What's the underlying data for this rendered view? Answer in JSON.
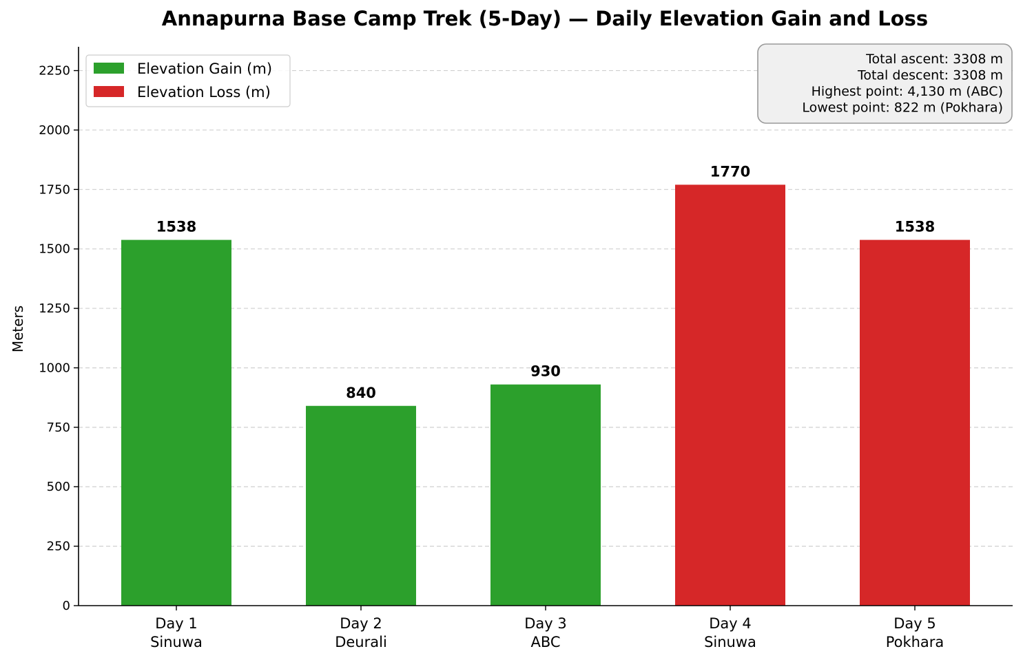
{
  "chart_data": {
    "type": "bar",
    "title": "Annapurna Base Camp Trek (5-Day) — Daily Elevation Gain and Loss",
    "ylabel": "Meters",
    "xlabel": "",
    "ylim": [
      0,
      2350
    ],
    "yticks": [
      0,
      250,
      500,
      750,
      1000,
      1250,
      1500,
      1750,
      2000,
      2250
    ],
    "grid": true,
    "legend_position": "top-left",
    "categories": [
      {
        "day": "Day 1",
        "place": "Sinuwa"
      },
      {
        "day": "Day 2",
        "place": "Deurali"
      },
      {
        "day": "Day 3",
        "place": "ABC"
      },
      {
        "day": "Day 4",
        "place": "Sinuwa"
      },
      {
        "day": "Day 5",
        "place": "Pokhara"
      }
    ],
    "series": [
      {
        "name": "Elevation Gain (m)",
        "color": "#2ca02c",
        "values": [
          1538,
          840,
          930,
          null,
          null
        ]
      },
      {
        "name": "Elevation Loss (m)",
        "color": "#d62728",
        "values": [
          null,
          null,
          null,
          1770,
          1538
        ]
      }
    ],
    "bar_labels": [
      "1538",
      "840",
      "930",
      "1770",
      "1538"
    ],
    "stats_box": [
      "Total ascent:  3308 m",
      "Total descent:  3308 m",
      "Highest point:  4,130 m (ABC)",
      "Lowest point:  822 m (Pokhara)"
    ]
  }
}
